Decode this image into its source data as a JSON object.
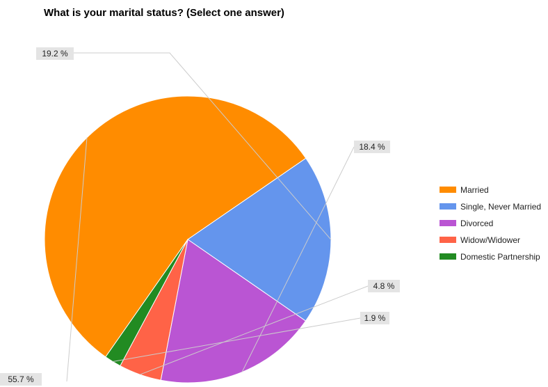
{
  "chart_data": {
    "type": "pie",
    "title": "What is your marital status? (Select one answer)",
    "slices": [
      {
        "label": "Married",
        "value": 55.7,
        "display": "55.7 %",
        "color": "#ff8c00"
      },
      {
        "label": "Single, Never Married",
        "value": 19.2,
        "display": "19.2 %",
        "color": "#6495ed"
      },
      {
        "label": "Divorced",
        "value": 18.4,
        "display": "18.4 %",
        "color": "#ba55d3"
      },
      {
        "label": "Widow/Widower",
        "value": 4.8,
        "display": "4.8 %",
        "color": "#ff6347"
      },
      {
        "label": "Domestic Partnership",
        "value": 1.9,
        "display": "1.9 %",
        "color": "#228b22"
      }
    ],
    "legend_position": "right",
    "start_angle_deg": -145
  }
}
